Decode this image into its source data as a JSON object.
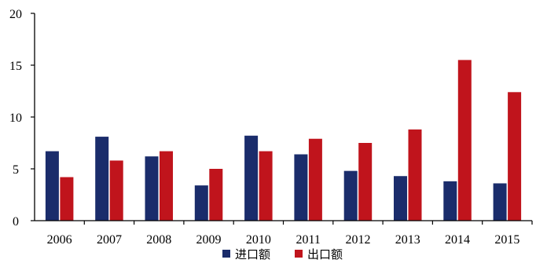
{
  "chart_data": {
    "type": "bar",
    "categories": [
      "2006",
      "2007",
      "2008",
      "2009",
      "2010",
      "2011",
      "2012",
      "2013",
      "2014",
      "2015"
    ],
    "series": [
      {
        "name": "进口额",
        "color": "#1a2c6b",
        "values": [
          6.7,
          8.1,
          6.2,
          3.4,
          8.2,
          6.4,
          4.8,
          4.3,
          3.8,
          3.6
        ]
      },
      {
        "name": "出口额",
        "color": "#c0141c",
        "values": [
          4.2,
          5.8,
          6.7,
          5.0,
          6.7,
          7.9,
          7.5,
          8.8,
          15.5,
          12.4
        ]
      }
    ],
    "yticks": [
      "0",
      "5",
      "10",
      "15",
      "20"
    ],
    "ylim": [
      0,
      20
    ],
    "grid": false,
    "legend_position": "bottom-center"
  }
}
